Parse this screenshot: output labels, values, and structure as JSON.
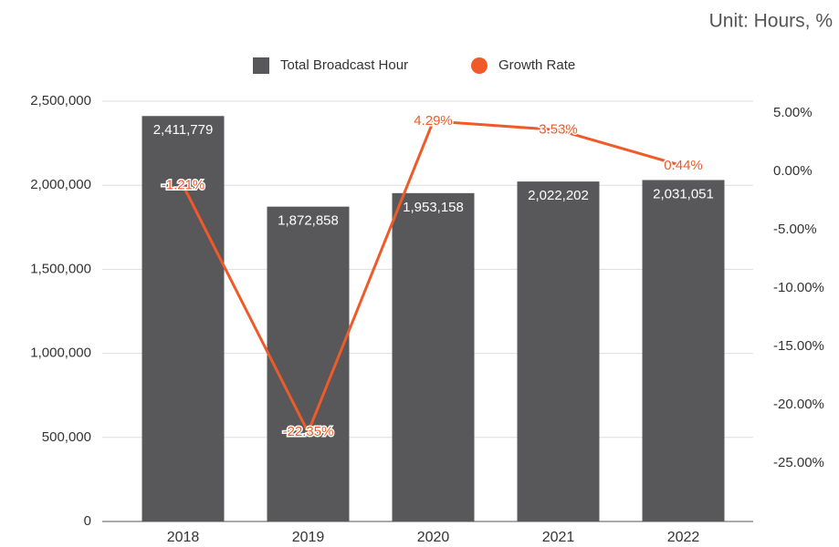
{
  "chart_data": {
    "type": "bar",
    "annotation": "Unit: Hours, %",
    "categories": [
      "2018",
      "2019",
      "2020",
      "2021",
      "2022"
    ],
    "series": [
      {
        "name": "Total Broadcast Hour",
        "type": "bar",
        "color": "#58585a",
        "values": [
          2411779,
          1872858,
          1953158,
          2022202,
          2031051
        ],
        "value_labels": [
          "2,411,779",
          "1,872,858",
          "1,953,158",
          "2,022,202",
          "2,031,051"
        ]
      },
      {
        "name": "Growth Rate",
        "type": "line",
        "axis": "y2",
        "color": "#f05a28",
        "values": [
          -1.21,
          -22.35,
          4.29,
          3.53,
          0.44
        ],
        "value_labels": [
          "-1.21%",
          "-22.35%",
          "4.29%",
          "3.53%",
          "0.44%"
        ]
      }
    ],
    "ylim": [
      0,
      2500000
    ],
    "yticks": [
      0,
      {
        "value": 500000,
        "label": "500,000"
      },
      {
        "value": 1000000,
        "label": "1,000,000"
      },
      {
        "value": 1500000,
        "label": "1,500,000"
      },
      {
        "value": 2000000,
        "label": "2,000,000"
      },
      {
        "value": 2500000,
        "label": "2,500,000"
      }
    ],
    "y2lim": [
      -30,
      6
    ],
    "y2ticks": [
      {
        "value": -25,
        "label": "-25.00%"
      },
      {
        "value": -20,
        "label": "-20.00%"
      },
      {
        "value": -15,
        "label": "-15.00%"
      },
      {
        "value": -10,
        "label": "-10.00%"
      },
      {
        "value": -5,
        "label": "-5.00%"
      },
      {
        "value": 0,
        "label": "0.00%"
      },
      {
        "value": 5,
        "label": "5.00%"
      }
    ],
    "grid": true,
    "legend": "top"
  }
}
